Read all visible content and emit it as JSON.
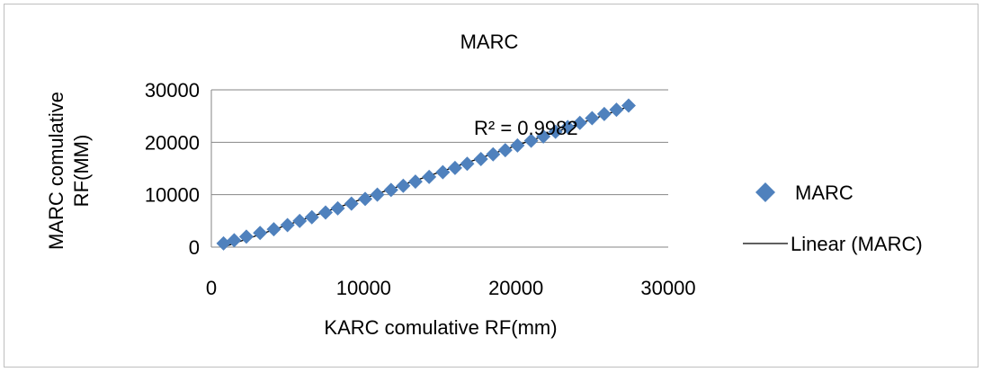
{
  "chart_data": {
    "type": "scatter",
    "title": "MARC",
    "xlabel": "KARC comulative RF(mm)",
    "ylabel": "MARC comulative RF(MM)",
    "xlim": [
      0,
      30000
    ],
    "ylim": [
      0,
      30000
    ],
    "x_ticks": [
      "0",
      "10000",
      "20000",
      "30000"
    ],
    "y_ticks": [
      "0",
      "10000",
      "20000",
      "30000"
    ],
    "grid": "horizontal",
    "legend_position": "right",
    "colors": {
      "marker": "#4f81bd",
      "trendline": "#000000",
      "grid": "#868686"
    },
    "series": [
      {
        "name": "MARC",
        "marker": "diamond",
        "x": [
          800,
          1500,
          2300,
          3200,
          4100,
          5000,
          5800,
          6600,
          7500,
          8300,
          9200,
          10100,
          10900,
          11800,
          12600,
          13400,
          14300,
          15200,
          16000,
          16800,
          17700,
          18500,
          19300,
          20100,
          21000,
          21800,
          22600,
          23400,
          24200,
          25000,
          25800,
          26600,
          27400
        ],
        "y": [
          700,
          1300,
          2000,
          2700,
          3400,
          4200,
          5000,
          5700,
          6600,
          7400,
          8300,
          9200,
          10000,
          10900,
          11700,
          12500,
          13400,
          14300,
          15100,
          15900,
          16800,
          17700,
          18500,
          19400,
          20300,
          21100,
          22000,
          22900,
          23700,
          24600,
          25400,
          26200,
          27000
        ]
      }
    ],
    "trendline": {
      "series_name": "Linear (MARC)",
      "type": "linear",
      "x_range": [
        800,
        27400
      ],
      "y_range": [
        0,
        26800
      ],
      "r2_label": "R² = 0.9982"
    }
  }
}
